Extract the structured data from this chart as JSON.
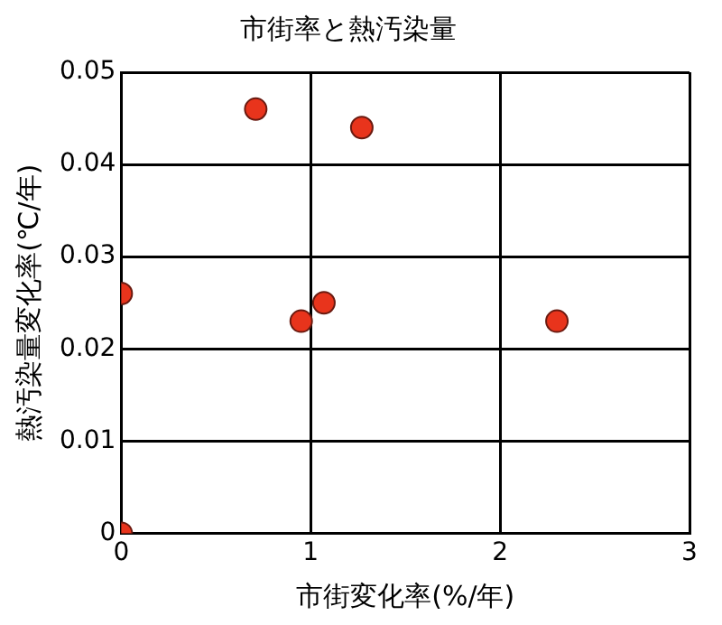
{
  "chart_data": {
    "type": "scatter",
    "title": "市街率と熱汚染量",
    "xlabel": "市街変化率(%/年)",
    "ylabel": "熱汚染量変化率(℃/年)",
    "x": [
      0,
      0,
      0.71,
      1.27,
      0.95,
      1.07,
      2.3
    ],
    "series": [
      {
        "color": "#e8341c",
        "values": [
          0,
          0.026,
          0.046,
          0.044,
          0.023,
          0.025,
          0.023
        ]
      }
    ],
    "xlim": [
      0,
      3
    ],
    "xticks": [
      0,
      1,
      2,
      3
    ],
    "ylim": [
      0,
      0.05
    ],
    "yticks": [
      0,
      0.01,
      0.02,
      0.03,
      0.04,
      0.05
    ],
    "grid": true,
    "legend": false,
    "marker": "circle"
  }
}
